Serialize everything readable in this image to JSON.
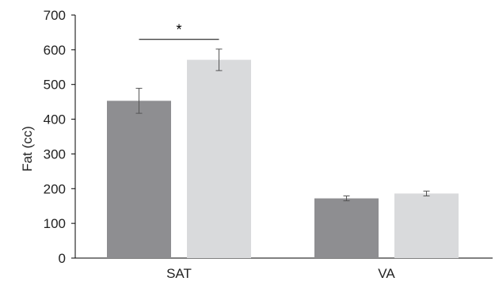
{
  "chart_data": {
    "type": "bar",
    "categories": [
      "SAT",
      "VA"
    ],
    "series": [
      {
        "values": [
          453,
          172
        ],
        "errors": [
          36,
          7
        ],
        "color": "#8e8e91"
      },
      {
        "values": [
          571,
          186
        ],
        "errors": [
          31,
          7
        ],
        "color": "#d9dadc"
      }
    ],
    "xlabel": "",
    "ylabel": "Fat (cc)",
    "ylim": [
      0,
      700
    ],
    "yticks": [
      0,
      100,
      200,
      300,
      400,
      500,
      600,
      700
    ],
    "grid": false,
    "legend": "none",
    "annotations": [
      {
        "text": "*",
        "category": "SAT",
        "from_series": 0,
        "to_series": 1,
        "y": 630
      }
    ]
  }
}
